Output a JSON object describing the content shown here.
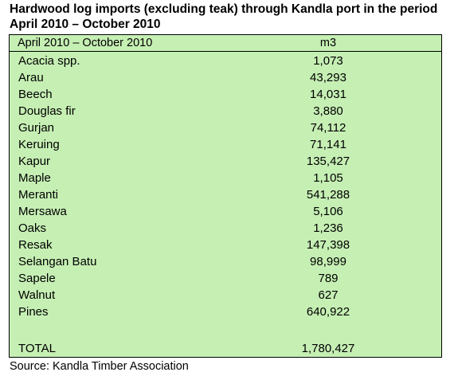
{
  "title": "Hardwood log imports (excluding teak) through Kandla port in the period April 2010 – October 2010",
  "table": {
    "header": {
      "label": "April 2010 – October 2010",
      "unit": "m3"
    },
    "rows": [
      {
        "name": "Acacia spp.",
        "value": "1,073"
      },
      {
        "name": "Arau",
        "value": "43,293"
      },
      {
        "name": "Beech",
        "value": "14,031"
      },
      {
        "name": "Douglas fir",
        "value": "3,880"
      },
      {
        "name": "Gurjan",
        "value": "74,112"
      },
      {
        "name": "Keruing",
        "value": "71,141"
      },
      {
        "name": "Kapur",
        "value": "135,427"
      },
      {
        "name": "Maple",
        "value": "1,105"
      },
      {
        "name": "Meranti",
        "value": "541,288"
      },
      {
        "name": "Mersawa",
        "value": "5,106"
      },
      {
        "name": "Oaks",
        "value": "1,236"
      },
      {
        "name": "Resak",
        "value": "147,398"
      },
      {
        "name": "Selangan Batu",
        "value": "98,999"
      },
      {
        "name": "Sapele",
        "value": "789"
      },
      {
        "name": "Walnut",
        "value": "627"
      },
      {
        "name": "Pines",
        "value": "640,922"
      }
    ],
    "total": {
      "name": "TOTAL",
      "value": "1,780,427"
    }
  },
  "source": "Source: Kandla Timber Association",
  "colors": {
    "table_background": "#c6efb4",
    "border": "#000000"
  }
}
